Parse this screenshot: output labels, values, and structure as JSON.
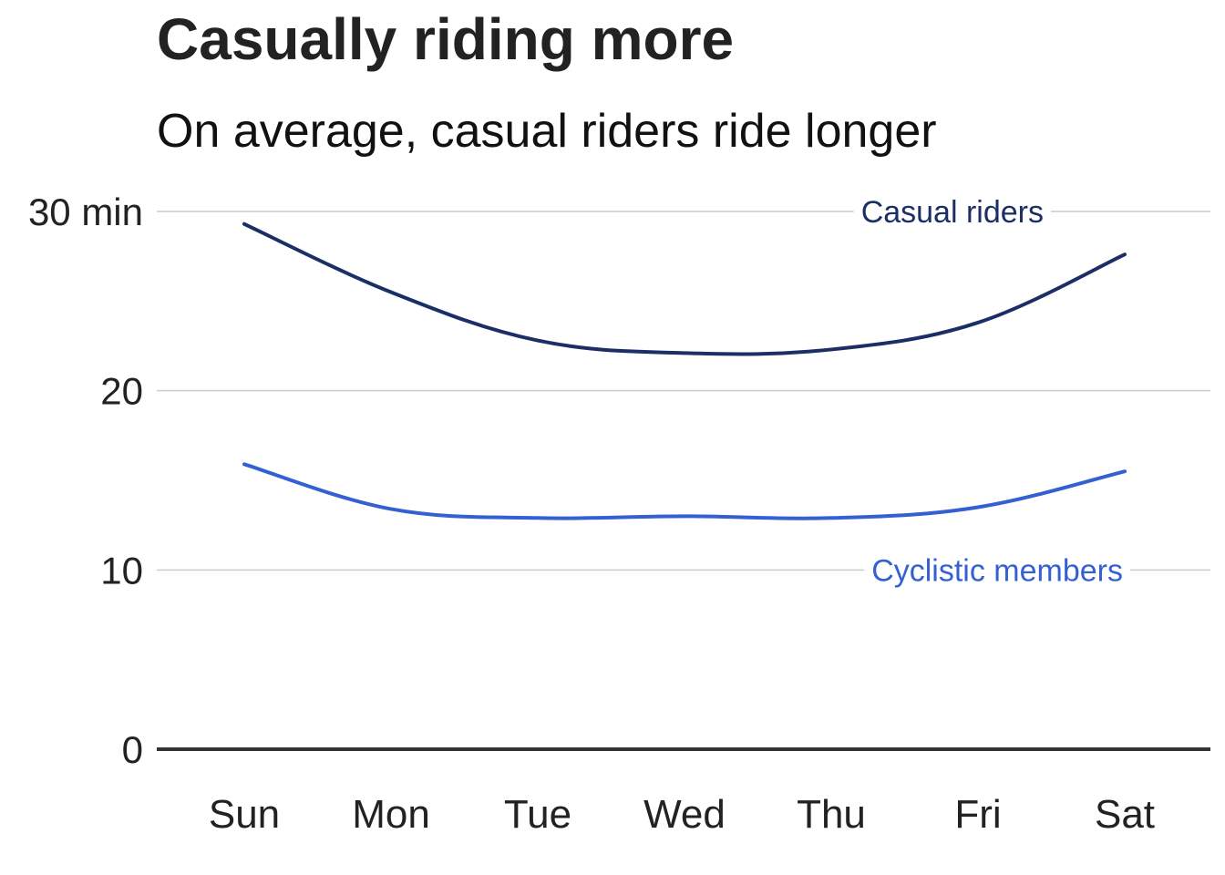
{
  "title": "Casually riding more",
  "subtitle": "On average, casual riders ride longer",
  "colors": {
    "casual": "#1b2f66",
    "member": "#3461d1",
    "grid": "#cccccc",
    "baseline": "#333333"
  },
  "chart_data": {
    "type": "line",
    "title": "Casually riding more",
    "subtitle": "On average, casual riders ride longer",
    "xlabel": "",
    "ylabel": "",
    "categories": [
      "Sun",
      "Mon",
      "Tue",
      "Wed",
      "Thu",
      "Fri",
      "Sat"
    ],
    "ylim": [
      0,
      30
    ],
    "yticks": [
      0,
      10,
      20,
      30
    ],
    "ytick_labels": [
      "0",
      "10",
      "20",
      "30 min"
    ],
    "grid": true,
    "series": [
      {
        "name": "Casual riders",
        "color": "#1b2f66",
        "values": [
          29.3,
          25.5,
          22.8,
          22.1,
          22.3,
          23.8,
          27.6
        ]
      },
      {
        "name": "Cyclistic members",
        "color": "#3461d1",
        "values": [
          15.9,
          13.4,
          12.9,
          13.0,
          12.9,
          13.5,
          15.5
        ]
      }
    ]
  }
}
